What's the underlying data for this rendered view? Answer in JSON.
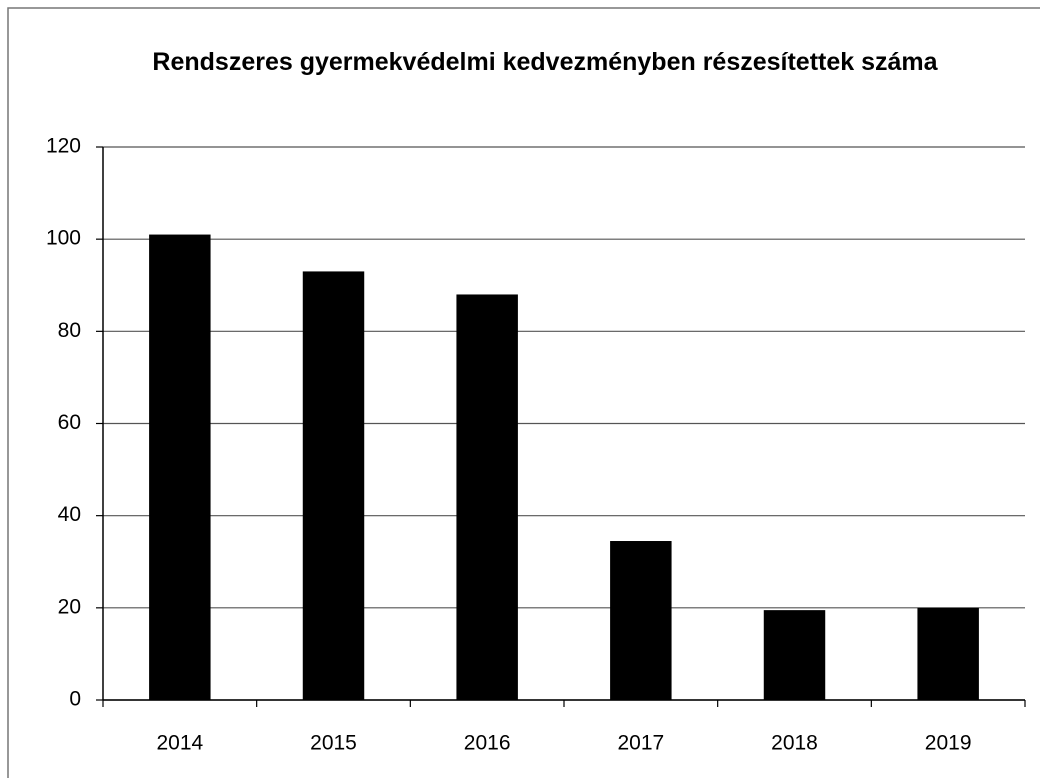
{
  "chart_data": {
    "type": "bar",
    "title": "Rendszeres gyermekvédelmi kedvezményben részesítettek száma",
    "categories": [
      "2014",
      "2015",
      "2016",
      "2017",
      "2018",
      "2019"
    ],
    "values": [
      101,
      93,
      88,
      34.5,
      19.5,
      20
    ],
    "color": "#000000",
    "ylim": [
      0,
      120
    ],
    "yticks": [
      0,
      20,
      40,
      60,
      80,
      100,
      120
    ],
    "grid": true
  }
}
